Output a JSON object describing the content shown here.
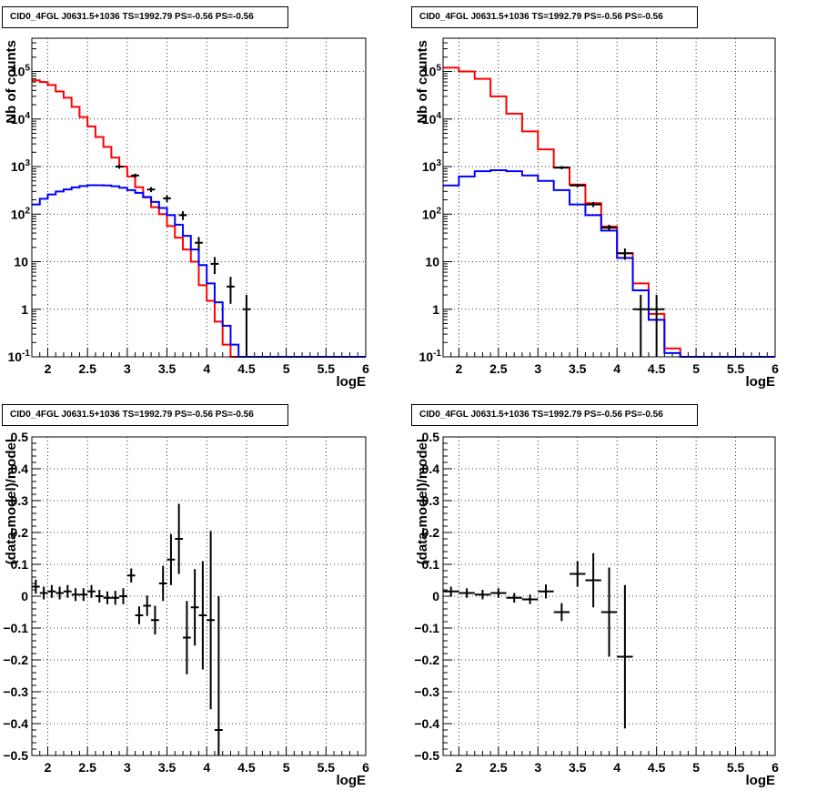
{
  "colors": {
    "model": "#ff0000",
    "background": "#0000ff",
    "data": "#000000",
    "frame": "#000000"
  },
  "panels": [
    {
      "title": "CID0_4FGL J0631.5+1036 TS=1992.79 PS=-0.56 PS=-0.56",
      "xlabel": "logE",
      "ylabel": "Nb of counts"
    },
    {
      "title": "CID0_4FGL J0631.5+1036 TS=1992.79 PS=-0.56 PS=-0.56",
      "xlabel": "logE",
      "ylabel": "Nb of counts"
    },
    {
      "title": "CID0_4FGL J0631.5+1036 TS=1992.79 PS=-0.56 PS=-0.56",
      "xlabel": "logE",
      "ylabel": "(data-model)/model"
    },
    {
      "title": "CID0_4FGL J0631.5+1036 TS=1992.79 PS=-0.56 PS=-0.56",
      "xlabel": "logE",
      "ylabel": "(data-model)/model"
    }
  ],
  "chart_data": [
    {
      "type": "line",
      "title": "CID0_4FGL J0631.5+1036 TS=1992.79 PS=-0.56 PS=-0.56",
      "xlabel": "logE",
      "ylabel": "Nb of counts",
      "xlim": [
        1.8,
        6.0
      ],
      "ylim": [
        0.1,
        500000
      ],
      "yscale": "log",
      "grid": true,
      "x_ticks": [
        "2",
        "2.5",
        "3",
        "3.5",
        "4",
        "4.5",
        "5",
        "5.5",
        "6"
      ],
      "y_ticks": [
        "10^{-1}",
        "1",
        "10",
        "10^{2}",
        "10^{3}",
        "10^{4}",
        "10^{5}"
      ],
      "bin_edges": [
        1.8,
        1.9,
        2.0,
        2.1,
        2.2,
        2.3,
        2.4,
        2.5,
        2.6,
        2.7,
        2.8,
        2.9,
        3.0,
        3.1,
        3.2,
        3.3,
        3.4,
        3.5,
        3.6,
        3.7,
        3.8,
        3.9,
        4.0,
        4.1,
        4.2,
        4.3,
        4.4,
        4.5,
        4.6,
        4.7,
        4.8,
        4.9,
        5.0,
        5.1,
        5.2,
        5.3,
        5.4,
        5.5,
        5.6,
        5.7,
        5.8,
        5.9,
        6.0
      ],
      "series": [
        {
          "name": "model",
          "values": [
            65000,
            60000,
            52000,
            38000,
            28000,
            18000,
            11000,
            7000,
            4200,
            2600,
            1550,
            1000,
            620,
            370,
            225,
            140,
            100,
            56,
            32,
            18,
            10,
            3.2,
            1.5,
            0.55,
            0.18,
            0.1,
            0.1,
            0.1,
            0.1,
            0.1,
            0.1,
            0.1,
            0.1,
            0.1,
            0.1,
            0.1,
            0.1,
            0.1,
            0.1,
            0.1,
            0.1,
            0.1
          ]
        },
        {
          "name": "background",
          "values": [
            160,
            210,
            260,
            300,
            330,
            365,
            390,
            405,
            405,
            400,
            385,
            360,
            320,
            280,
            230,
            180,
            135,
            95,
            60,
            35,
            18,
            8.5,
            3.5,
            1.4,
            0.45,
            0.18,
            0.1,
            0.1,
            0.1,
            0.1,
            0.1,
            0.1,
            0.1,
            0.1,
            0.1,
            0.1,
            0.1,
            0.1,
            0.1,
            0.1,
            0.1,
            0.1
          ]
        },
        {
          "name": "data",
          "x": [
            2.9,
            3.1,
            3.3,
            3.5,
            3.7,
            3.9,
            4.1,
            4.3,
            4.5
          ],
          "values": [
            1000,
            650,
            330,
            215,
            95,
            25,
            9.0,
            3.0,
            1.0
          ],
          "lo": [
            900,
            590,
            290,
            180,
            75,
            17,
            5.5,
            1.3,
            0.1
          ],
          "hi": [
            1100,
            710,
            370,
            250,
            115,
            33,
            12.5,
            4.8,
            2.0
          ]
        }
      ]
    },
    {
      "type": "line",
      "title": "CID0_4FGL J0631.5+1036 TS=1992.79 PS=-0.56 PS=-0.56",
      "xlabel": "logE",
      "ylabel": "Nb of counts",
      "xlim": [
        1.8,
        6.0
      ],
      "ylim": [
        0.1,
        500000
      ],
      "yscale": "log",
      "grid": true,
      "x_ticks": [
        "2",
        "2.5",
        "3",
        "3.5",
        "4",
        "4.5",
        "5",
        "5.5",
        "6"
      ],
      "y_ticks": [
        "10^{-1}",
        "1",
        "10",
        "10^{2}",
        "10^{3}",
        "10^{4}",
        "10^{5}"
      ],
      "bin_edges": [
        1.8,
        2.0,
        2.2,
        2.4,
        2.6,
        2.8,
        3.0,
        3.2,
        3.4,
        3.6,
        3.8,
        4.0,
        4.2,
        4.4,
        4.6,
        4.8,
        5.0,
        5.2,
        5.4,
        5.6,
        5.8,
        6.0
      ],
      "series": [
        {
          "name": "model",
          "values": [
            120000,
            100000,
            70000,
            30000,
            13000,
            5500,
            2300,
            950,
            420,
            170,
            55,
            15,
            3.5,
            0.8,
            0.15,
            0.1,
            0.1,
            0.1,
            0.1,
            0.1,
            0.1
          ]
        },
        {
          "name": "background",
          "values": [
            400,
            620,
            800,
            840,
            800,
            650,
            500,
            320,
            160,
            95,
            45,
            12,
            2.5,
            0.6,
            0.12,
            0.1,
            0.1,
            0.1,
            0.1,
            0.1,
            0.1
          ]
        },
        {
          "name": "data",
          "x": [
            3.3,
            3.5,
            3.7,
            3.9,
            4.1,
            4.3,
            4.5
          ],
          "values": [
            950,
            400,
            160,
            52,
            15,
            1.0,
            1.0
          ],
          "lo": [
            880,
            370,
            140,
            45,
            11,
            0.1,
            0.1
          ],
          "hi": [
            1020,
            430,
            180,
            60,
            19,
            2.0,
            2.0
          ]
        }
      ]
    },
    {
      "type": "scatter",
      "title": "CID0_4FGL J0631.5+1036 TS=1992.79 PS=-0.56 PS=-0.56",
      "xlabel": "logE",
      "ylabel": "(data-model)/model",
      "xlim": [
        1.8,
        6.0
      ],
      "ylim": [
        -0.5,
        0.5
      ],
      "grid": true,
      "x_ticks": [
        "2",
        "2.5",
        "3",
        "3.5",
        "4",
        "4.5",
        "5",
        "5.5",
        "6"
      ],
      "y_ticks": [
        "−0.5",
        "−0.4",
        "−0.3",
        "−0.2",
        "−0.1",
        "0",
        "0.1",
        "0.2",
        "0.3",
        "0.4",
        "0.5"
      ],
      "x_halfwidth": 0.05,
      "x": [
        1.85,
        1.95,
        2.05,
        2.15,
        2.25,
        2.35,
        2.45,
        2.55,
        2.65,
        2.75,
        2.85,
        2.95,
        3.05,
        3.15,
        3.25,
        3.35,
        3.45,
        3.55,
        3.65,
        3.75,
        3.85,
        3.95,
        4.05,
        4.15
      ],
      "y": [
        0.03,
        0.01,
        0.015,
        0.01,
        0.015,
        0.005,
        0.005,
        0.015,
        0.0,
        -0.005,
        -0.005,
        0.0,
        0.065,
        -0.06,
        -0.03,
        -0.075,
        0.04,
        0.115,
        0.18,
        -0.13,
        -0.035,
        -0.06,
        -0.075,
        -0.42
      ],
      "yerr": [
        0.022,
        0.02,
        0.02,
        0.02,
        0.02,
        0.02,
        0.02,
        0.02,
        0.02,
        0.02,
        0.022,
        0.025,
        0.022,
        0.028,
        0.032,
        0.045,
        0.055,
        0.08,
        0.11,
        0.115,
        0.12,
        0.17,
        0.28,
        0.42
      ]
    },
    {
      "type": "scatter",
      "title": "CID0_4FGL J0631.5+1036 TS=1992.79 PS=-0.56 PS=-0.56",
      "xlabel": "logE",
      "ylabel": "(data-model)/model",
      "xlim": [
        1.8,
        6.0
      ],
      "ylim": [
        -0.5,
        0.5
      ],
      "grid": true,
      "x_ticks": [
        "2",
        "2.5",
        "3",
        "3.5",
        "4",
        "4.5",
        "5",
        "5.5",
        "6"
      ],
      "y_ticks": [
        "−0.5",
        "−0.4",
        "−0.3",
        "−0.2",
        "−0.1",
        "0",
        "0.1",
        "0.2",
        "0.3",
        "0.4",
        "0.5"
      ],
      "x_halfwidth": 0.1,
      "x": [
        1.9,
        2.1,
        2.3,
        2.5,
        2.7,
        2.9,
        3.1,
        3.3,
        3.5,
        3.7,
        3.9,
        4.1
      ],
      "y": [
        0.015,
        0.01,
        0.005,
        0.01,
        -0.005,
        -0.01,
        0.015,
        -0.05,
        0.07,
        0.05,
        -0.05,
        -0.19
      ],
      "yerr": [
        0.015,
        0.015,
        0.015,
        0.015,
        0.015,
        0.015,
        0.022,
        0.028,
        0.04,
        0.085,
        0.14,
        0.225
      ]
    }
  ]
}
